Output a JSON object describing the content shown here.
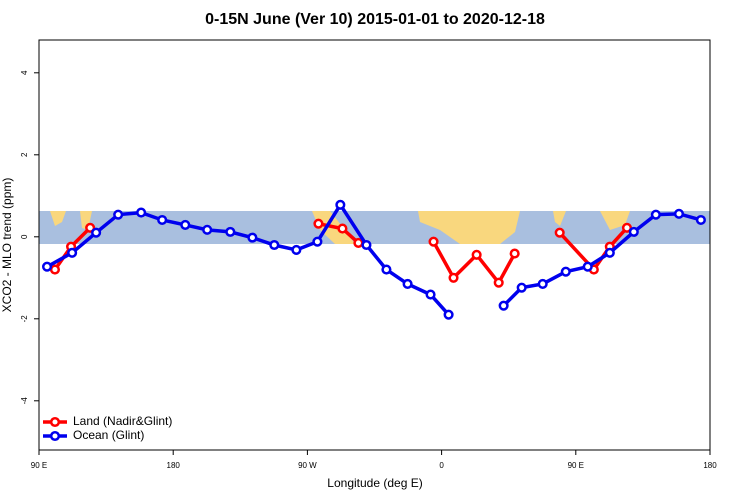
{
  "chart_data": {
    "type": "line",
    "title": "0-15N June (Ver 10)   2015-01-01 to 2020-12-18",
    "x_label": "Longitude (deg E)",
    "y_label": "XCO2 - MLO trend (ppm)",
    "xlim": [
      90,
      540
    ],
    "ylim": [
      -5.2,
      4.8
    ],
    "xticks": [
      {
        "value": 90,
        "label": "90 E"
      },
      180,
      {
        "value": 270,
        "label": "90 W"
      },
      {
        "value": 360,
        "label": "0"
      },
      {
        "value": 450,
        "label": "90 E"
      },
      {
        "value": 540,
        "label": "180"
      }
    ],
    "yticks": [
      4,
      2,
      0,
      -2,
      -4
    ],
    "legend": "bottom-left",
    "series": [
      {
        "name": "Land (Nadir&Glint)",
        "color": "#ff0000",
        "x": [
          100.7,
          111.5,
          124.3,
          200,
          277.4,
          293.5,
          304.2,
          330,
          354.6,
          368.0,
          383.5,
          398.3,
          409.0,
          425,
          439.2,
          462.1,
          472.8,
          484.3
        ],
        "values": [
          -0.8,
          -0.24,
          0.22,
          null,
          0.32,
          0.2,
          -0.15,
          null,
          -0.12,
          -1.0,
          -0.44,
          -1.12,
          -0.41,
          null,
          0.1,
          -0.8,
          -0.24,
          0.22
        ]
      },
      {
        "name": "Ocean (Glint)",
        "color": "#0000ee",
        "x": [
          95.4,
          112.2,
          128.3,
          143.1,
          158.5,
          172.6,
          188.1,
          202.8,
          218.3,
          233.1,
          247.8,
          262.6,
          276.7,
          292.1,
          309.6,
          323.0,
          337.2,
          352.6,
          364.7,
          383,
          401.6,
          413.7,
          427.8,
          443.3,
          458.0,
          472.8,
          488.9,
          503.7,
          519.2,
          533.9
        ],
        "values": [
          -0.73,
          -0.39,
          0.1,
          0.54,
          0.59,
          0.41,
          0.29,
          0.17,
          0.12,
          -0.02,
          -0.2,
          -0.32,
          -0.12,
          0.78,
          -0.2,
          -0.8,
          -1.15,
          -1.41,
          -1.9,
          null,
          -1.68,
          -1.24,
          -1.15,
          -0.85,
          -0.73,
          -0.39,
          0.12,
          0.54,
          0.56,
          0.41
        ]
      }
    ]
  }
}
